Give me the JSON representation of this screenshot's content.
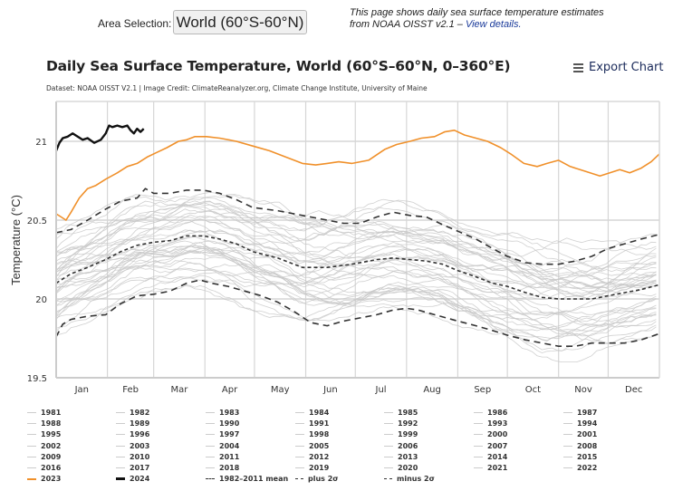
{
  "header": {
    "area_label": "Area Selection:",
    "area_selected": "World (60°S-60°N)",
    "intro_text": "This page shows daily sea surface temperature estimates from NOAA OISST v2.1 –",
    "intro_link": "View details."
  },
  "chart_header": {
    "title": "Daily Sea Surface Temperature, World (60°S–60°N, 0–360°E)",
    "credit": "Dataset: NOAA OISST V2.1 | Image Credit: ClimateReanalyzer.org, Climate Change Institute, University of Maine",
    "export_label": "Export Chart",
    "export_icon": "hamburger-menu-icon"
  },
  "colors": {
    "year_2023": "#f0902a",
    "year_2024": "#111111",
    "other_years": "#c8c8c8",
    "stat_lines": "#333333",
    "grid": "#d6d6d6"
  },
  "chart_data": {
    "type": "line",
    "title": "Daily Sea Surface Temperature, World (60°S–60°N, 0–360°E)",
    "xlabel": "",
    "ylabel": "Temperature (°C)",
    "ylim": [
      19.5,
      21.25
    ],
    "xlim": [
      1,
      366
    ],
    "yticks": [
      19.5,
      20,
      20.5,
      21
    ],
    "ytick_labels": [
      "19.5",
      "20",
      "20.5",
      "21"
    ],
    "month_labels": [
      "Jan",
      "Feb",
      "Mar",
      "Apr",
      "May",
      "Jun",
      "Jul",
      "Aug",
      "Sep",
      "Oct",
      "Nov",
      "Dec"
    ],
    "month_starts": [
      1,
      32,
      60,
      91,
      121,
      152,
      182,
      213,
      244,
      274,
      305,
      335
    ],
    "grid": true,
    "legend_placement": "bottom",
    "series": [
      {
        "name": "2024",
        "style": "solid-thick",
        "color": "#111111",
        "x": [
          1,
          3,
          5,
          8,
          11,
          14,
          17,
          20,
          24,
          28,
          31,
          33,
          35,
          38,
          41,
          44,
          46,
          48,
          50,
          52,
          54
        ],
        "y": [
          20.94,
          20.99,
          21.02,
          21.03,
          21.05,
          21.03,
          21.01,
          21.02,
          20.99,
          21.01,
          21.05,
          21.1,
          21.09,
          21.1,
          21.09,
          21.1,
          21.07,
          21.05,
          21.08,
          21.06,
          21.08
        ]
      },
      {
        "name": "2023",
        "style": "solid",
        "color": "#f0902a",
        "x": [
          1,
          4,
          7,
          10,
          15,
          20,
          25,
          31,
          38,
          44,
          50,
          56,
          62,
          68,
          75,
          80,
          85,
          92,
          100,
          110,
          120,
          130,
          140,
          150,
          158,
          165,
          172,
          180,
          190,
          200,
          207,
          215,
          222,
          230,
          236,
          242,
          248,
          255,
          262,
          270,
          276,
          284,
          292,
          298,
          305,
          312,
          318,
          324,
          330,
          336,
          342,
          348,
          355,
          361,
          366
        ],
        "y": [
          20.54,
          20.52,
          20.5,
          20.55,
          20.64,
          20.7,
          20.72,
          20.76,
          20.8,
          20.84,
          20.86,
          20.9,
          20.93,
          20.96,
          21.0,
          21.01,
          21.03,
          21.03,
          21.02,
          21.0,
          20.97,
          20.94,
          20.9,
          20.86,
          20.85,
          20.86,
          20.87,
          20.86,
          20.88,
          20.95,
          20.98,
          21.0,
          21.02,
          21.03,
          21.06,
          21.07,
          21.04,
          21.02,
          21.0,
          20.96,
          20.92,
          20.86,
          20.84,
          20.86,
          20.88,
          20.84,
          20.82,
          20.8,
          20.78,
          20.8,
          20.82,
          20.8,
          20.83,
          20.87,
          20.92
        ]
      },
      {
        "name": "1982–2011 mean",
        "style": "short-dash",
        "color": "#333333",
        "x": [
          1,
          10,
          20,
          31,
          40,
          50,
          60,
          70,
          80,
          90,
          100,
          110,
          120,
          135,
          150,
          165,
          180,
          195,
          205,
          215,
          225,
          235,
          244,
          255,
          265,
          274,
          285,
          295,
          305,
          315,
          325,
          335,
          345,
          355,
          366
        ],
        "y": [
          20.1,
          20.16,
          20.2,
          20.25,
          20.3,
          20.34,
          20.36,
          20.37,
          20.4,
          20.4,
          20.38,
          20.35,
          20.3,
          20.26,
          20.2,
          20.2,
          20.22,
          20.25,
          20.26,
          20.25,
          20.24,
          20.22,
          20.18,
          20.14,
          20.1,
          20.08,
          20.04,
          20.01,
          20.0,
          20.0,
          20.0,
          20.02,
          20.04,
          20.06,
          20.09
        ]
      },
      {
        "name": "plus 2σ",
        "style": "long-dash",
        "color": "#333333",
        "x": [
          1,
          10,
          20,
          31,
          40,
          50,
          55,
          60,
          70,
          80,
          90,
          100,
          110,
          120,
          135,
          150,
          165,
          175,
          185,
          195,
          205,
          215,
          225,
          235,
          244,
          255,
          265,
          274,
          285,
          295,
          305,
          315,
          325,
          335,
          345,
          355,
          366
        ],
        "y": [
          20.42,
          20.44,
          20.5,
          20.57,
          20.62,
          20.64,
          20.7,
          20.67,
          20.67,
          20.69,
          20.69,
          20.67,
          20.63,
          20.58,
          20.56,
          20.53,
          20.5,
          20.48,
          20.48,
          20.52,
          20.55,
          20.53,
          20.52,
          20.47,
          20.43,
          20.38,
          20.32,
          20.27,
          20.23,
          20.22,
          20.22,
          20.24,
          20.27,
          20.32,
          20.35,
          20.38,
          20.41
        ]
      },
      {
        "name": "minus 2σ",
        "style": "long-dash",
        "color": "#333333",
        "x": [
          1,
          5,
          10,
          20,
          31,
          40,
          50,
          60,
          70,
          80,
          88,
          95,
          105,
          115,
          125,
          135,
          145,
          155,
          165,
          175,
          185,
          195,
          205,
          213,
          220,
          230,
          244,
          255,
          265,
          274,
          285,
          295,
          305,
          315,
          325,
          335,
          345,
          355,
          366
        ],
        "y": [
          19.76,
          19.84,
          19.87,
          19.89,
          19.9,
          19.97,
          20.02,
          20.03,
          20.05,
          20.1,
          20.12,
          20.1,
          20.08,
          20.05,
          20.02,
          19.98,
          19.92,
          19.85,
          19.83,
          19.86,
          19.88,
          19.9,
          19.93,
          19.94,
          19.93,
          19.9,
          19.86,
          19.83,
          19.8,
          19.77,
          19.74,
          19.72,
          19.7,
          19.7,
          19.72,
          19.72,
          19.72,
          19.74,
          19.78
        ]
      }
    ],
    "background_years": {
      "years": [
        1981,
        1982,
        1983,
        1984,
        1985,
        1986,
        1987,
        1988,
        1989,
        1990,
        1991,
        1992,
        1993,
        1994,
        1995,
        1996,
        1997,
        1998,
        1999,
        2000,
        2001,
        2002,
        2003,
        2004,
        2005,
        2006,
        2007,
        2008,
        2009,
        2010,
        2011,
        2012,
        2013,
        2014,
        2015,
        2016,
        2017,
        2018,
        2019,
        2020,
        2021,
        2022
      ],
      "color": "#c8c8c8",
      "approx_range_by_month": {
        "Jan": [
          19.8,
          20.75
        ],
        "Apr": [
          20.0,
          20.9
        ],
        "Jul": [
          19.9,
          20.6
        ],
        "Oct": [
          19.75,
          20.45
        ],
        "Dec": [
          19.85,
          20.7
        ]
      }
    }
  },
  "legend": {
    "items": [
      {
        "label": "1981",
        "kind": "year"
      },
      {
        "label": "1982",
        "kind": "year"
      },
      {
        "label": "1983",
        "kind": "year"
      },
      {
        "label": "1984",
        "kind": "year"
      },
      {
        "label": "1985",
        "kind": "year"
      },
      {
        "label": "1986",
        "kind": "year"
      },
      {
        "label": "1987",
        "kind": "year"
      },
      {
        "label": "1988",
        "kind": "year"
      },
      {
        "label": "1989",
        "kind": "year"
      },
      {
        "label": "1990",
        "kind": "year"
      },
      {
        "label": "1991",
        "kind": "year"
      },
      {
        "label": "1992",
        "kind": "year"
      },
      {
        "label": "1993",
        "kind": "year"
      },
      {
        "label": "1994",
        "kind": "year"
      },
      {
        "label": "1995",
        "kind": "year"
      },
      {
        "label": "1996",
        "kind": "year"
      },
      {
        "label": "1997",
        "kind": "year"
      },
      {
        "label": "1998",
        "kind": "year"
      },
      {
        "label": "1999",
        "kind": "year"
      },
      {
        "label": "2000",
        "kind": "year"
      },
      {
        "label": "2001",
        "kind": "year"
      },
      {
        "label": "2002",
        "kind": "year"
      },
      {
        "label": "2003",
        "kind": "year"
      },
      {
        "label": "2004",
        "kind": "year"
      },
      {
        "label": "2005",
        "kind": "year"
      },
      {
        "label": "2006",
        "kind": "year"
      },
      {
        "label": "2007",
        "kind": "year"
      },
      {
        "label": "2008",
        "kind": "year"
      },
      {
        "label": "2009",
        "kind": "year"
      },
      {
        "label": "2010",
        "kind": "year"
      },
      {
        "label": "2011",
        "kind": "year"
      },
      {
        "label": "2012",
        "kind": "year"
      },
      {
        "label": "2013",
        "kind": "year"
      },
      {
        "label": "2014",
        "kind": "year"
      },
      {
        "label": "2015",
        "kind": "year"
      },
      {
        "label": "2016",
        "kind": "year"
      },
      {
        "label": "2017",
        "kind": "year"
      },
      {
        "label": "2018",
        "kind": "year"
      },
      {
        "label": "2019",
        "kind": "year"
      },
      {
        "label": "2020",
        "kind": "year"
      },
      {
        "label": "2021",
        "kind": "year"
      },
      {
        "label": "2022",
        "kind": "year"
      },
      {
        "label": "2023",
        "kind": "y2023"
      },
      {
        "label": "2024",
        "kind": "y2024"
      },
      {
        "label": "1982–2011 mean",
        "kind": "mean"
      },
      {
        "label": "plus 2σ",
        "kind": "sigma"
      },
      {
        "label": "minus 2σ",
        "kind": "sigma"
      }
    ]
  }
}
